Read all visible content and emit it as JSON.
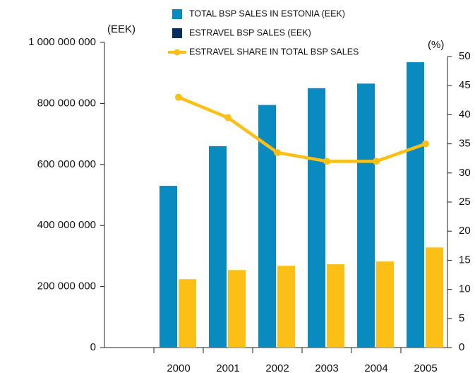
{
  "chart_data": {
    "type": "bar",
    "y_unit_label": "(EEK)",
    "y2_unit_label": "(%)",
    "categories": [
      null,
      "2000",
      "2001",
      "2002",
      "2003",
      "2004",
      "2005"
    ],
    "series": [
      {
        "name": "TOTAL BSP SALES IN ESTONIA (EEK)",
        "color": "#0a8bc0",
        "values": [
          null,
          530000000,
          660000000,
          795000000,
          850000000,
          865000000,
          935000000
        ]
      },
      {
        "name": "ESTRAVEL BSP SALES (EEK)",
        "color": "#fbbf15",
        "legend_color": "#0b2d5e",
        "values": [
          null,
          224000000,
          254000000,
          268000000,
          273000000,
          282000000,
          328000000
        ]
      },
      {
        "name": "ESTRAVEL SHARE IN TOTAL BSP SALES",
        "type": "line",
        "axis": "y2",
        "color": "#fbbf15",
        "values": [
          null,
          43,
          39.5,
          33.5,
          32,
          32,
          35
        ]
      }
    ],
    "ylim": [
      0,
      1000000000
    ],
    "yticks": [
      0,
      {
        "value": 200000000,
        "label": "200 000 000"
      },
      {
        "value": 400000000,
        "label": "400 000 000"
      },
      {
        "value": 600000000,
        "label": "600 000 000"
      },
      {
        "value": 800000000,
        "label": "800 000 000"
      },
      {
        "value": 1000000000,
        "label": "1 000 000 000"
      }
    ],
    "y2lim": [
      0,
      50
    ],
    "y2ticks": [
      0,
      5,
      10,
      15,
      20,
      25,
      30,
      35,
      40,
      45,
      50
    ]
  }
}
